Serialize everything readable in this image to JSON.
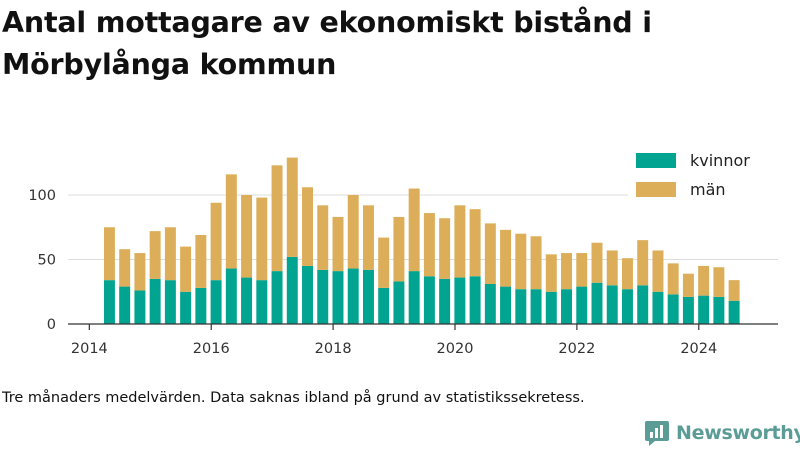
{
  "title": "Antal mottagare av ekonomiskt bistånd i Mörbylånga kommun",
  "footnote": "Tre månaders medelvärden. Data saknas ibland på grund av statistikssekretess.",
  "brand": {
    "name": "Newsworthy",
    "icon": "newsworthy-logo-icon"
  },
  "colors": {
    "kvinnor": "#00a491",
    "man": "#dcae5a",
    "axis": "#333333",
    "grid": "#dddddd",
    "text": "#333333"
  },
  "chart_data": {
    "type": "bar",
    "stacked": true,
    "grid": true,
    "legend_position": "top-right",
    "xlim": [
      2013.65,
      2025.3
    ],
    "ylim": [
      0,
      130
    ],
    "xticks": [
      2014,
      2016,
      2018,
      2020,
      2022,
      2024
    ],
    "yticks": [
      0,
      50,
      100
    ],
    "x": [
      2014.33,
      2014.58,
      2014.83,
      2015.08,
      2015.33,
      2015.58,
      2015.83,
      2016.08,
      2016.33,
      2016.58,
      2016.83,
      2017.08,
      2017.33,
      2017.58,
      2017.83,
      2018.08,
      2018.33,
      2018.58,
      2018.83,
      2019.08,
      2019.33,
      2019.58,
      2019.83,
      2020.08,
      2020.33,
      2020.58,
      2020.83,
      2021.08,
      2021.33,
      2021.58,
      2021.83,
      2022.08,
      2022.33,
      2022.58,
      2022.83,
      2023.08,
      2023.33,
      2023.58,
      2023.83,
      2024.08,
      2024.33,
      2024.58
    ],
    "series": [
      {
        "name": "kvinnor",
        "values": [
          34,
          29,
          26,
          35,
          34,
          25,
          28,
          34,
          43,
          36,
          34,
          41,
          52,
          45,
          42,
          41,
          43,
          42,
          28,
          33,
          41,
          37,
          35,
          36,
          37,
          31,
          29,
          27,
          27,
          25,
          27,
          29,
          32,
          30,
          27,
          30,
          25,
          23,
          21,
          22,
          21,
          18
        ]
      },
      {
        "name": "män",
        "values": [
          41,
          29,
          29,
          37,
          41,
          35,
          41,
          60,
          73,
          64,
          64,
          82,
          77,
          61,
          50,
          42,
          57,
          50,
          39,
          50,
          64,
          49,
          47,
          56,
          52,
          47,
          44,
          43,
          41,
          29,
          28,
          26,
          31,
          27,
          24,
          35,
          32,
          24,
          18,
          23,
          23,
          16
        ]
      }
    ]
  }
}
